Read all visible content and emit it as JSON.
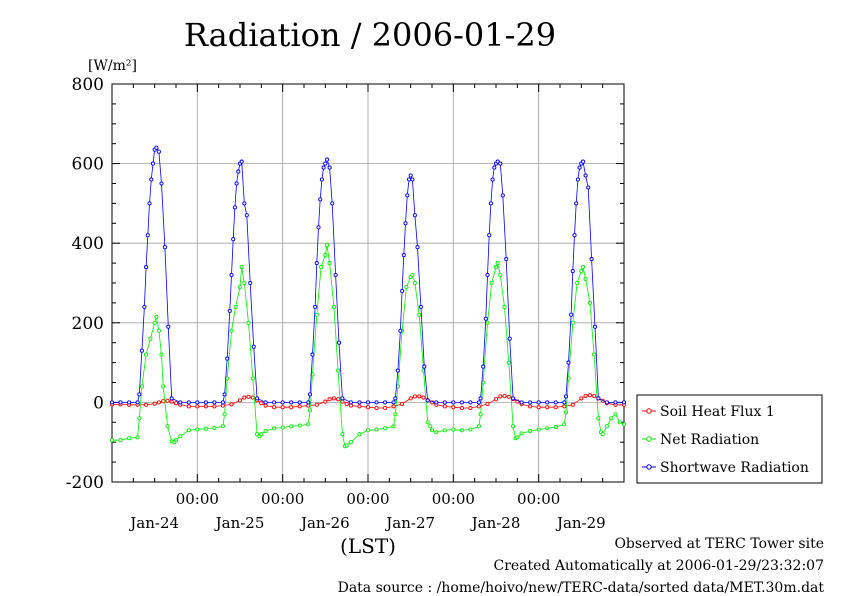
{
  "chart_data": {
    "type": "line",
    "title": "Radiation / 2006-01-29",
    "ylabel_unit": "[W/m²]",
    "xlabel": "(LST)",
    "ylim": [
      -200,
      800
    ],
    "yticks": [
      -200,
      0,
      200,
      400,
      600,
      800
    ],
    "xlim": [
      0,
      6
    ],
    "xticks": [
      1,
      2,
      3,
      4,
      5
    ],
    "xtick_time_label": "00:00",
    "day_labels": [
      "Jan-24",
      "Jan-25",
      "Jan-26",
      "Jan-27",
      "Jan-28",
      "Jan-29"
    ],
    "grid": true,
    "legend_position": "right",
    "series": [
      {
        "name": "Soil Heat Flux 1",
        "color": "#ff0000",
        "x": [
          0,
          0.1,
          0.2,
          0.3,
          0.4,
          0.5,
          0.55,
          0.6,
          0.65,
          0.7,
          0.75,
          0.8,
          0.9,
          1.0,
          1.1,
          1.2,
          1.3,
          1.4,
          1.5,
          1.55,
          1.6,
          1.65,
          1.7,
          1.75,
          1.8,
          1.9,
          2.0,
          2.1,
          2.2,
          2.3,
          2.4,
          2.5,
          2.55,
          2.6,
          2.65,
          2.7,
          2.75,
          2.8,
          2.9,
          3.0,
          3.1,
          3.2,
          3.3,
          3.4,
          3.5,
          3.55,
          3.6,
          3.65,
          3.7,
          3.75,
          3.8,
          3.9,
          4.0,
          4.1,
          4.2,
          4.3,
          4.4,
          4.5,
          4.55,
          4.6,
          4.65,
          4.7,
          4.75,
          4.8,
          4.9,
          5.0,
          5.1,
          5.2,
          5.3,
          5.4,
          5.5,
          5.55,
          5.6,
          5.65,
          5.7,
          5.75,
          5.8,
          5.9,
          6.0
        ],
        "y": [
          -5,
          -5,
          -6,
          -6,
          -6,
          -3,
          0,
          3,
          4,
          2,
          -2,
          -6,
          -10,
          -10,
          -10,
          -10,
          -8,
          -5,
          5,
          12,
          14,
          12,
          5,
          -2,
          -8,
          -12,
          -12,
          -12,
          -10,
          -8,
          -6,
          2,
          8,
          10,
          8,
          2,
          -4,
          -8,
          -10,
          -12,
          -14,
          -14,
          -10,
          -4,
          10,
          15,
          15,
          12,
          6,
          0,
          -6,
          -10,
          -12,
          -14,
          -14,
          -10,
          -4,
          8,
          15,
          16,
          14,
          8,
          2,
          -4,
          -10,
          -12,
          -12,
          -12,
          -10,
          -6,
          10,
          16,
          18,
          16,
          10,
          4,
          -2,
          -6,
          -6
        ]
      },
      {
        "name": "Net Radiation",
        "color": "#00ee00",
        "x": [
          0,
          0.1,
          0.2,
          0.3,
          0.32,
          0.35,
          0.4,
          0.45,
          0.5,
          0.52,
          0.55,
          0.58,
          0.6,
          0.65,
          0.7,
          0.73,
          0.75,
          0.8,
          0.9,
          1.0,
          1.1,
          1.2,
          1.3,
          1.32,
          1.35,
          1.4,
          1.45,
          1.5,
          1.52,
          1.55,
          1.6,
          1.65,
          1.7,
          1.73,
          1.75,
          1.8,
          1.9,
          2.0,
          2.1,
          2.2,
          2.3,
          2.32,
          2.35,
          2.4,
          2.45,
          2.5,
          2.52,
          2.55,
          2.6,
          2.65,
          2.7,
          2.73,
          2.75,
          2.8,
          2.9,
          3.0,
          3.1,
          3.2,
          3.3,
          3.32,
          3.35,
          3.4,
          3.45,
          3.5,
          3.52,
          3.55,
          3.6,
          3.65,
          3.7,
          3.73,
          3.75,
          3.8,
          3.9,
          4.0,
          4.1,
          4.2,
          4.3,
          4.32,
          4.35,
          4.4,
          4.45,
          4.5,
          4.52,
          4.55,
          4.6,
          4.65,
          4.7,
          4.73,
          4.75,
          4.8,
          4.9,
          5.0,
          5.1,
          5.2,
          5.3,
          5.32,
          5.35,
          5.4,
          5.45,
          5.5,
          5.52,
          5.55,
          5.6,
          5.65,
          5.7,
          5.73,
          5.75,
          5.8,
          5.85,
          5.9,
          5.95,
          6.0
        ],
        "y": [
          -95,
          -95,
          -90,
          -88,
          -40,
          40,
          120,
          160,
          200,
          215,
          180,
          120,
          40,
          -60,
          -98,
          -100,
          -95,
          -85,
          -70,
          -68,
          -66,
          -64,
          -60,
          -30,
          60,
          180,
          240,
          290,
          340,
          300,
          200,
          60,
          -80,
          -85,
          -80,
          -72,
          -65,
          -63,
          -60,
          -58,
          -55,
          -20,
          70,
          220,
          340,
          370,
          395,
          350,
          240,
          80,
          -80,
          -110,
          -108,
          -100,
          -80,
          -70,
          -68,
          -65,
          -60,
          -30,
          40,
          180,
          290,
          315,
          320,
          300,
          220,
          80,
          -50,
          -60,
          -70,
          -75,
          -70,
          -68,
          -70,
          -68,
          -60,
          -30,
          50,
          200,
          300,
          340,
          350,
          320,
          240,
          100,
          -60,
          -90,
          -88,
          -78,
          -72,
          -68,
          -65,
          -62,
          -55,
          -25,
          60,
          200,
          300,
          330,
          340,
          310,
          250,
          120,
          -40,
          -75,
          -80,
          -60,
          -40,
          -30,
          -50,
          -55
        ]
      },
      {
        "name": "Shortwave Radiation",
        "color": "#0000ff",
        "x": [
          0,
          0.1,
          0.2,
          0.3,
          0.32,
          0.35,
          0.38,
          0.4,
          0.42,
          0.44,
          0.46,
          0.48,
          0.5,
          0.52,
          0.55,
          0.58,
          0.62,
          0.66,
          0.7,
          0.8,
          0.9,
          1.0,
          1.1,
          1.2,
          1.3,
          1.32,
          1.35,
          1.38,
          1.4,
          1.42,
          1.44,
          1.46,
          1.48,
          1.5,
          1.52,
          1.55,
          1.58,
          1.62,
          1.66,
          1.7,
          1.8,
          1.9,
          2.0,
          2.1,
          2.2,
          2.3,
          2.32,
          2.35,
          2.38,
          2.4,
          2.42,
          2.44,
          2.46,
          2.48,
          2.5,
          2.52,
          2.55,
          2.58,
          2.62,
          2.66,
          2.7,
          2.8,
          2.9,
          3.0,
          3.1,
          3.2,
          3.3,
          3.32,
          3.35,
          3.38,
          3.4,
          3.42,
          3.44,
          3.46,
          3.48,
          3.5,
          3.52,
          3.55,
          3.58,
          3.62,
          3.66,
          3.7,
          3.8,
          3.9,
          4.0,
          4.1,
          4.2,
          4.3,
          4.32,
          4.35,
          4.38,
          4.4,
          4.42,
          4.44,
          4.46,
          4.48,
          4.5,
          4.52,
          4.55,
          4.58,
          4.62,
          4.66,
          4.7,
          4.8,
          4.9,
          5.0,
          5.1,
          5.2,
          5.3,
          5.32,
          5.35,
          5.38,
          5.4,
          5.42,
          5.44,
          5.46,
          5.48,
          5.5,
          5.52,
          5.55,
          5.58,
          5.62,
          5.66,
          5.7,
          5.8,
          5.9,
          6.0
        ],
        "y": [
          0,
          0,
          0,
          0,
          20,
          130,
          240,
          340,
          420,
          500,
          560,
          600,
          635,
          640,
          630,
          550,
          390,
          190,
          10,
          0,
          0,
          0,
          0,
          0,
          0,
          20,
          110,
          230,
          320,
          410,
          490,
          550,
          580,
          600,
          605,
          500,
          470,
          300,
          140,
          10,
          0,
          0,
          0,
          0,
          0,
          0,
          20,
          120,
          240,
          350,
          440,
          510,
          560,
          590,
          600,
          610,
          590,
          500,
          320,
          150,
          10,
          0,
          0,
          0,
          0,
          0,
          0,
          10,
          80,
          180,
          280,
          370,
          450,
          520,
          560,
          570,
          560,
          470,
          390,
          240,
          90,
          5,
          0,
          0,
          0,
          0,
          0,
          0,
          10,
          90,
          210,
          320,
          420,
          500,
          560,
          590,
          600,
          605,
          600,
          520,
          360,
          160,
          10,
          0,
          0,
          0,
          0,
          0,
          0,
          15,
          100,
          220,
          330,
          420,
          500,
          560,
          590,
          600,
          605,
          570,
          540,
          360,
          190,
          10,
          0,
          0,
          0
        ]
      }
    ]
  },
  "footer": {
    "line1": "Observed at TERC Tower site",
    "line2": "Created Automatically at 2006-01-29/23:32:07",
    "line3": "Data source : /home/hoivo/new/TERC-data/sorted  data/MET.30m.dat"
  }
}
